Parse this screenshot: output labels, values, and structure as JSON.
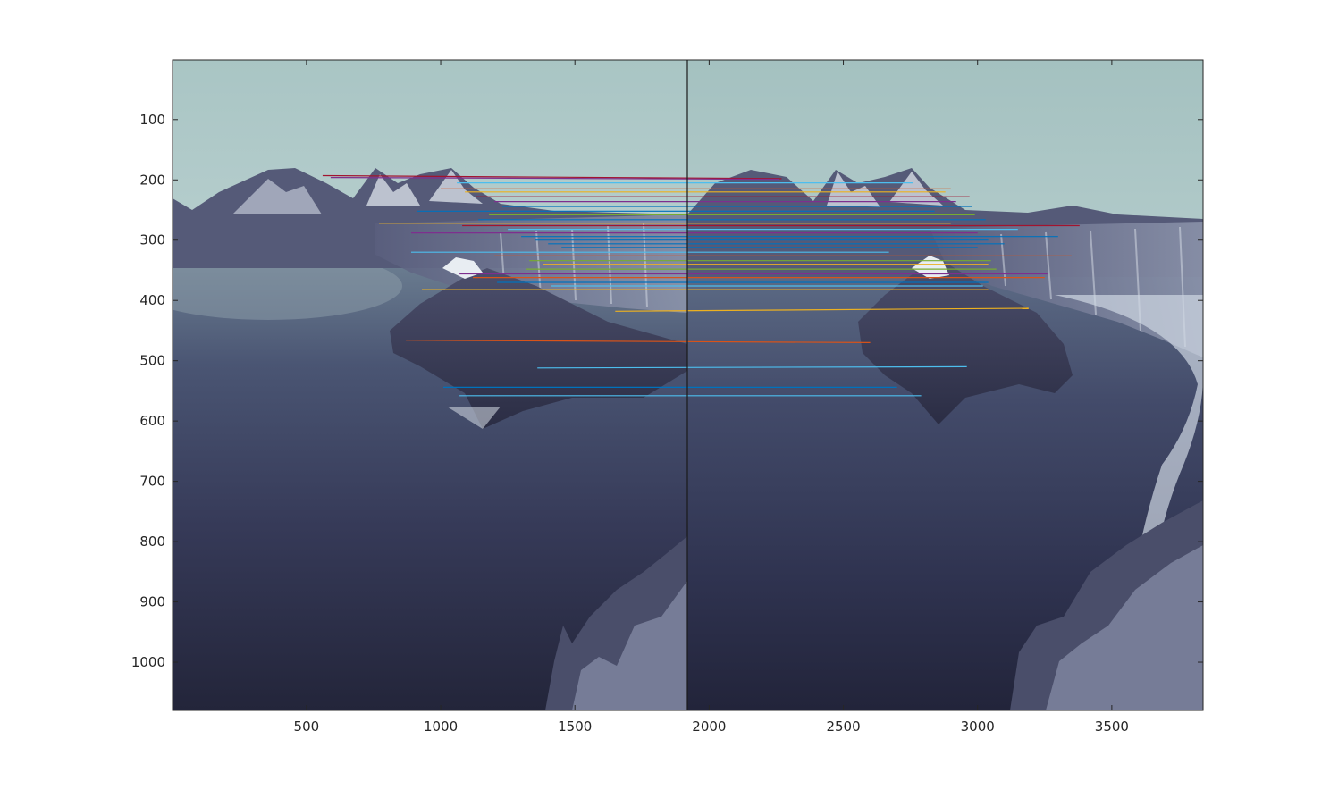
{
  "chart_data": {
    "type": "scatter",
    "subtype": "feature-matching image pair with connecting lines",
    "title": "",
    "xlabel": "",
    "ylabel": "",
    "xlim": [
      1,
      3840
    ],
    "ylim": [
      1080,
      1
    ],
    "y_axis_reversed": true,
    "grid": false,
    "image_width": 1920,
    "images": [
      {
        "name": "left image",
        "x_range": [
          1,
          1920
        ],
        "y_range": [
          1,
          1080
        ]
      },
      {
        "name": "right image",
        "x_range": [
          1921,
          3840
        ],
        "y_range": [
          1,
          1080
        ]
      }
    ],
    "x_ticks": [
      500,
      1000,
      1500,
      2000,
      2500,
      3000,
      3500
    ],
    "x_tick_labels": [
      "500",
      "1000",
      "1500",
      "2000",
      "2500",
      "3000",
      "3500"
    ],
    "y_ticks": [
      100,
      200,
      300,
      400,
      500,
      600,
      700,
      800,
      900,
      1000
    ],
    "y_tick_labels": [
      "100",
      "200",
      "300",
      "400",
      "500",
      "600",
      "700",
      "800",
      "900",
      "1000"
    ],
    "matches": [
      {
        "x1": 560,
        "y1": 193,
        "x2": 2270,
        "y2": 198,
        "color": "#A2142F"
      },
      {
        "x1": 590,
        "y1": 196,
        "x2": 2260,
        "y2": 199,
        "color": "#7E2F8E"
      },
      {
        "x1": 1060,
        "y1": 205,
        "x2": 2760,
        "y2": 205,
        "color": "#4DBEEE"
      },
      {
        "x1": 1000,
        "y1": 215,
        "x2": 2900,
        "y2": 215,
        "color": "#D95319"
      },
      {
        "x1": 1090,
        "y1": 220,
        "x2": 2880,
        "y2": 220,
        "color": "#EDB120"
      },
      {
        "x1": 1130,
        "y1": 228,
        "x2": 2970,
        "y2": 228,
        "color": "#A2142F"
      },
      {
        "x1": 1200,
        "y1": 236,
        "x2": 2920,
        "y2": 236,
        "color": "#7E2F8E"
      },
      {
        "x1": 1230,
        "y1": 244,
        "x2": 2980,
        "y2": 244,
        "color": "#0072BD"
      },
      {
        "x1": 910,
        "y1": 252,
        "x2": 2840,
        "y2": 252,
        "color": "#0072BD"
      },
      {
        "x1": 1180,
        "y1": 258,
        "x2": 2990,
        "y2": 258,
        "color": "#77AC30"
      },
      {
        "x1": 1140,
        "y1": 266,
        "x2": 3030,
        "y2": 266,
        "color": "#0072BD"
      },
      {
        "x1": 770,
        "y1": 272,
        "x2": 2900,
        "y2": 272,
        "color": "#EDB120"
      },
      {
        "x1": 1080,
        "y1": 276,
        "x2": 3380,
        "y2": 276,
        "color": "#A2142F"
      },
      {
        "x1": 1250,
        "y1": 282,
        "x2": 3150,
        "y2": 282,
        "color": "#4DBEEE"
      },
      {
        "x1": 890,
        "y1": 288,
        "x2": 3000,
        "y2": 288,
        "color": "#7E2F8E"
      },
      {
        "x1": 1300,
        "y1": 294,
        "x2": 3300,
        "y2": 294,
        "color": "#0072BD"
      },
      {
        "x1": 1350,
        "y1": 300,
        "x2": 3040,
        "y2": 300,
        "color": "#0072BD"
      },
      {
        "x1": 1400,
        "y1": 306,
        "x2": 3100,
        "y2": 306,
        "color": "#0072BD"
      },
      {
        "x1": 1450,
        "y1": 312,
        "x2": 3000,
        "y2": 312,
        "color": "#0072BD"
      },
      {
        "x1": 890,
        "y1": 320,
        "x2": 2670,
        "y2": 320,
        "color": "#4DBEEE"
      },
      {
        "x1": 1200,
        "y1": 326,
        "x2": 3350,
        "y2": 326,
        "color": "#D95319"
      },
      {
        "x1": 1330,
        "y1": 334,
        "x2": 3050,
        "y2": 334,
        "color": "#77AC30"
      },
      {
        "x1": 1380,
        "y1": 340,
        "x2": 3040,
        "y2": 340,
        "color": "#EDB120"
      },
      {
        "x1": 1320,
        "y1": 348,
        "x2": 3070,
        "y2": 348,
        "color": "#77AC30"
      },
      {
        "x1": 1070,
        "y1": 356,
        "x2": 3260,
        "y2": 356,
        "color": "#7E2F8E"
      },
      {
        "x1": 1120,
        "y1": 362,
        "x2": 3250,
        "y2": 362,
        "color": "#D95319"
      },
      {
        "x1": 1210,
        "y1": 370,
        "x2": 3040,
        "y2": 370,
        "color": "#0072BD"
      },
      {
        "x1": 1410,
        "y1": 376,
        "x2": 3020,
        "y2": 376,
        "color": "#4DBEEE"
      },
      {
        "x1": 930,
        "y1": 382,
        "x2": 3040,
        "y2": 382,
        "color": "#EDB120"
      },
      {
        "x1": 1650,
        "y1": 418,
        "x2": 3190,
        "y2": 413,
        "color": "#EDB120"
      },
      {
        "x1": 870,
        "y1": 466,
        "x2": 2600,
        "y2": 470,
        "color": "#D95319"
      },
      {
        "x1": 1360,
        "y1": 512,
        "x2": 2960,
        "y2": 510,
        "color": "#4DBEEE"
      },
      {
        "x1": 1010,
        "y1": 544,
        "x2": 2700,
        "y2": 544,
        "color": "#0072BD"
      },
      {
        "x1": 1070,
        "y1": 558,
        "x2": 2790,
        "y2": 558,
        "color": "#4DBEEE"
      }
    ]
  }
}
